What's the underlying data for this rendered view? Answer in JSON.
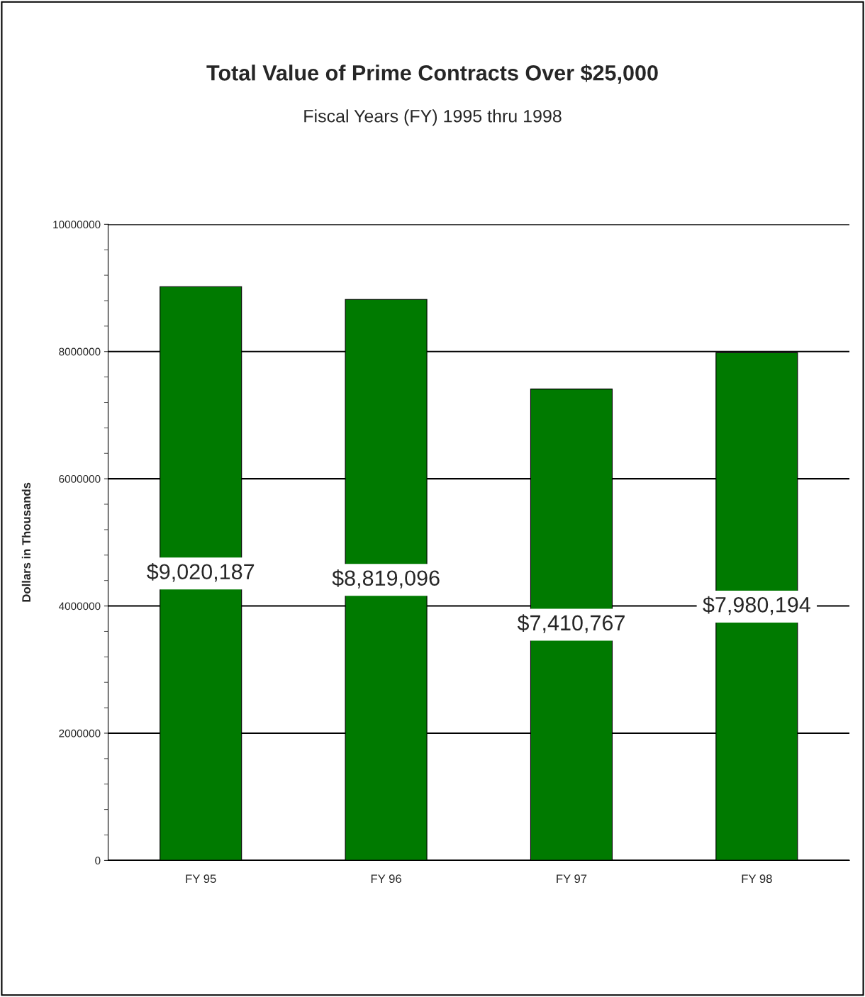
{
  "chart_data": {
    "type": "bar",
    "title": "Total Value of Prime Contracts Over $25,000",
    "subtitle": "Fiscal Years (FY) 1995 thru 1998",
    "ylabel": "Dollars in Thousands",
    "categories": [
      "FY 95",
      "FY 96",
      "FY 97",
      "FY 98"
    ],
    "values": [
      9020187,
      8819096,
      7410767,
      7980194
    ],
    "value_labels": [
      "$9,020,187",
      "$8,819,096",
      "$7,410,767",
      "$7,980,194"
    ],
    "color": "#007a00",
    "ylim": [
      0,
      10000000
    ],
    "yticks": [
      0,
      2000000,
      4000000,
      6000000,
      8000000,
      10000000
    ],
    "grid": "y",
    "legend": false
  }
}
